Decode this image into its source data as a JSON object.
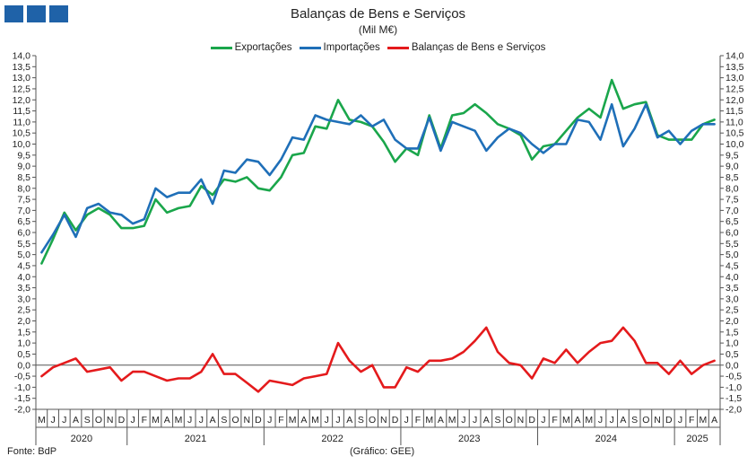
{
  "header": {
    "title": "Balanças de Bens e Serviços",
    "subtitle": "(Mil M€)"
  },
  "footer": {
    "source": "Fonte: BdP",
    "credit": "(Gráfico: GEE)"
  },
  "colors": {
    "logo": "#1f62a8",
    "exports": "#1aa64b",
    "imports": "#1f6fb8",
    "balance": "#e41a1c",
    "axis": "#555555"
  },
  "chart_data": {
    "type": "line",
    "title": "Balanças de Bens e Serviços",
    "subtitle": "(Mil M€)",
    "ylim": [
      -2.0,
      14.0
    ],
    "ytick_step": 0.5,
    "ytick_labels": [
      "-2,0",
      "-1,5",
      "-1,0",
      "-0,5",
      "0,0",
      "0,5",
      "1,0",
      "1,5",
      "2,0",
      "2,5",
      "3,0",
      "3,5",
      "4,0",
      "4,5",
      "5,0",
      "5,5",
      "6,0",
      "6,5",
      "7,0",
      "7,5",
      "8,0",
      "8,5",
      "9,0",
      "9,5",
      "10,0",
      "10,5",
      "11,0",
      "11,5",
      "12,0",
      "12,5",
      "13,0",
      "13,5",
      "14,0"
    ],
    "grid": false,
    "legend_position": "top-center",
    "x": [
      "M",
      "J",
      "J",
      "A",
      "S",
      "O",
      "N",
      "D",
      "J",
      "F",
      "M",
      "A",
      "M",
      "J",
      "J",
      "A",
      "S",
      "O",
      "N",
      "D",
      "J",
      "F",
      "M",
      "A",
      "M",
      "J",
      "J",
      "A",
      "S",
      "O",
      "N",
      "D",
      "J",
      "F",
      "M",
      "A",
      "M",
      "J",
      "J",
      "A",
      "S",
      "O",
      "N",
      "D",
      "J",
      "F",
      "M",
      "A",
      "M",
      "J",
      "J",
      "A",
      "S",
      "O",
      "N",
      "D",
      "J",
      "F",
      "M",
      "A"
    ],
    "years": [
      {
        "label": "2020",
        "start": 0,
        "end": 7
      },
      {
        "label": "2021",
        "start": 8,
        "end": 19
      },
      {
        "label": "2022",
        "start": 20,
        "end": 31
      },
      {
        "label": "2023",
        "start": 32,
        "end": 43
      },
      {
        "label": "2024",
        "start": 44,
        "end": 55
      },
      {
        "label": "2025",
        "start": 56,
        "end": 59
      }
    ],
    "series": [
      {
        "name": "Exportações",
        "color": "#1aa64b",
        "values": [
          4.6,
          5.7,
          6.9,
          6.1,
          6.8,
          7.1,
          6.8,
          6.2,
          6.2,
          6.3,
          7.5,
          6.9,
          7.1,
          7.2,
          8.1,
          7.7,
          8.4,
          8.3,
          8.5,
          8.0,
          7.9,
          8.5,
          9.5,
          9.6,
          10.8,
          10.7,
          12.0,
          11.1,
          11.0,
          10.8,
          10.1,
          9.2,
          9.8,
          9.5,
          11.3,
          9.8,
          11.3,
          11.4,
          11.8,
          11.4,
          10.9,
          10.7,
          10.4,
          9.3,
          9.9,
          10.0,
          10.6,
          11.2,
          11.6,
          11.2,
          12.9,
          11.6,
          11.8,
          11.9,
          10.4,
          10.2,
          10.2,
          10.2,
          10.9,
          11.1
        ]
      },
      {
        "name": "Importações",
        "color": "#1f6fb8",
        "values": [
          5.1,
          5.9,
          6.8,
          5.8,
          7.1,
          7.3,
          6.9,
          6.8,
          6.4,
          6.6,
          8.0,
          7.6,
          7.8,
          7.8,
          8.4,
          7.3,
          8.8,
          8.7,
          9.3,
          9.2,
          8.6,
          9.3,
          10.3,
          10.2,
          11.3,
          11.1,
          11.0,
          10.9,
          11.3,
          10.8,
          11.1,
          10.2,
          9.8,
          9.8,
          11.2,
          9.7,
          11.0,
          10.8,
          10.6,
          9.7,
          10.3,
          10.7,
          10.5,
          10.0,
          9.6,
          10.0,
          10.0,
          11.1,
          11.0,
          10.2,
          11.8,
          9.9,
          10.7,
          11.8,
          10.3,
          10.6,
          10.0,
          10.6,
          10.9,
          10.9
        ]
      },
      {
        "name": "Balanças de Bens e Serviços",
        "color": "#e41a1c",
        "values": [
          -0.5,
          -0.1,
          0.1,
          0.3,
          -0.3,
          -0.2,
          -0.1,
          -0.7,
          -0.3,
          -0.3,
          -0.5,
          -0.7,
          -0.6,
          -0.6,
          -0.3,
          0.5,
          -0.4,
          -0.4,
          -0.8,
          -1.2,
          -0.7,
          -0.8,
          -0.9,
          -0.6,
          -0.5,
          -0.4,
          1.0,
          0.2,
          -0.3,
          0.0,
          -1.0,
          -1.0,
          -0.1,
          -0.3,
          0.2,
          0.2,
          0.3,
          0.6,
          1.1,
          1.7,
          0.6,
          0.1,
          0.0,
          -0.6,
          0.3,
          0.1,
          0.7,
          0.1,
          0.6,
          1.0,
          1.1,
          1.7,
          1.1,
          0.1,
          0.1,
          -0.4,
          0.2,
          -0.4,
          0.0,
          0.2
        ]
      }
    ]
  }
}
